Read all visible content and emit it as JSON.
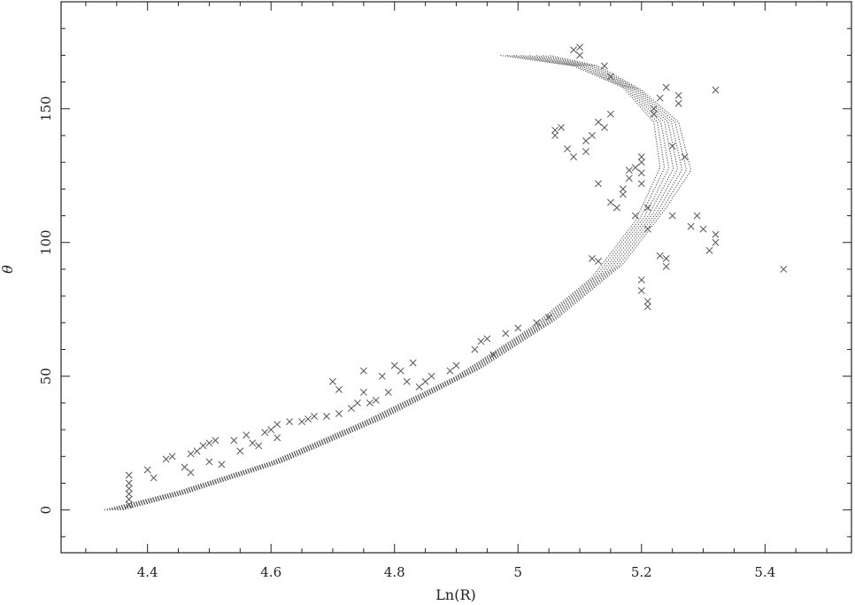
{
  "chart_data": {
    "type": "scatter",
    "title": "",
    "xlabel": "Ln(R)",
    "ylabel": "θ",
    "xlim": [
      4.26,
      5.54
    ],
    "ylim": [
      -16,
      190
    ],
    "xticks": [
      4.4,
      4.6,
      4.8,
      5,
      5.2,
      5.4
    ],
    "xtick_labels": [
      "4.4",
      "4.6",
      "4.8",
      "5",
      "5.2",
      "5.4"
    ],
    "yticks": [
      0,
      50,
      100,
      150
    ],
    "ytick_labels": [
      "0",
      "50",
      "100",
      "150"
    ],
    "grid": false,
    "legend": false,
    "colors": {
      "markers": "#555555",
      "frame": "#222222",
      "background": "#ffffff"
    },
    "series": [
      {
        "marker": "x",
        "points": [
          [
            4.37,
            13
          ],
          [
            4.37,
            10
          ],
          [
            4.37,
            8
          ],
          [
            4.37,
            6
          ],
          [
            4.37,
            4
          ],
          [
            4.37,
            2
          ],
          [
            4.4,
            15
          ],
          [
            4.41,
            12
          ],
          [
            4.43,
            19
          ],
          [
            4.44,
            20
          ],
          [
            4.46,
            16
          ],
          [
            4.47,
            21
          ],
          [
            4.47,
            14
          ],
          [
            4.48,
            22
          ],
          [
            4.49,
            24
          ],
          [
            4.5,
            25
          ],
          [
            4.5,
            18
          ],
          [
            4.51,
            26
          ],
          [
            4.52,
            17
          ],
          [
            4.54,
            26
          ],
          [
            4.55,
            22
          ],
          [
            4.56,
            28
          ],
          [
            4.57,
            25
          ],
          [
            4.58,
            24
          ],
          [
            4.59,
            29
          ],
          [
            4.6,
            30
          ],
          [
            4.61,
            32
          ],
          [
            4.61,
            27
          ],
          [
            4.63,
            33
          ],
          [
            4.65,
            33
          ],
          [
            4.66,
            34
          ],
          [
            4.67,
            35
          ],
          [
            4.69,
            35
          ],
          [
            4.7,
            48
          ],
          [
            4.71,
            45
          ],
          [
            4.71,
            36
          ],
          [
            4.73,
            38
          ],
          [
            4.74,
            40
          ],
          [
            4.75,
            52
          ],
          [
            4.75,
            44
          ],
          [
            4.76,
            40
          ],
          [
            4.77,
            41
          ],
          [
            4.78,
            50
          ],
          [
            4.79,
            44
          ],
          [
            4.8,
            54
          ],
          [
            4.81,
            52
          ],
          [
            4.82,
            48
          ],
          [
            4.83,
            55
          ],
          [
            4.84,
            46
          ],
          [
            4.85,
            48
          ],
          [
            4.86,
            50
          ],
          [
            4.89,
            52
          ],
          [
            4.9,
            54
          ],
          [
            4.93,
            60
          ],
          [
            4.94,
            63
          ],
          [
            4.95,
            64
          ],
          [
            4.96,
            58
          ],
          [
            4.98,
            66
          ],
          [
            5.0,
            68
          ],
          [
            5.03,
            70
          ],
          [
            5.05,
            72
          ],
          [
            5.06,
            142
          ],
          [
            5.06,
            140
          ],
          [
            5.07,
            143
          ],
          [
            5.08,
            135
          ],
          [
            5.09,
            132
          ],
          [
            5.09,
            172
          ],
          [
            5.1,
            173
          ],
          [
            5.1,
            170
          ],
          [
            5.11,
            138
          ],
          [
            5.11,
            134
          ],
          [
            5.12,
            140
          ],
          [
            5.12,
            94
          ],
          [
            5.13,
            122
          ],
          [
            5.13,
            93
          ],
          [
            5.13,
            145
          ],
          [
            5.14,
            143
          ],
          [
            5.14,
            166
          ],
          [
            5.15,
            148
          ],
          [
            5.15,
            162
          ],
          [
            5.15,
            115
          ],
          [
            5.16,
            113
          ],
          [
            5.17,
            118
          ],
          [
            5.17,
            120
          ],
          [
            5.18,
            124
          ],
          [
            5.18,
            127
          ],
          [
            5.19,
            128
          ],
          [
            5.19,
            110
          ],
          [
            5.2,
            132
          ],
          [
            5.2,
            126
          ],
          [
            5.2,
            130
          ],
          [
            5.2,
            122
          ],
          [
            5.2,
            86
          ],
          [
            5.2,
            82
          ],
          [
            5.21,
            113
          ],
          [
            5.21,
            105
          ],
          [
            5.21,
            78
          ],
          [
            5.21,
            76
          ],
          [
            5.22,
            150
          ],
          [
            5.22,
            148
          ],
          [
            5.23,
            154
          ],
          [
            5.23,
            95
          ],
          [
            5.24,
            91
          ],
          [
            5.24,
            94
          ],
          [
            5.24,
            158
          ],
          [
            5.25,
            110
          ],
          [
            5.25,
            136
          ],
          [
            5.26,
            152
          ],
          [
            5.26,
            155
          ],
          [
            5.27,
            132
          ],
          [
            5.28,
            106
          ],
          [
            5.29,
            110
          ],
          [
            5.3,
            105
          ],
          [
            5.31,
            97
          ],
          [
            5.32,
            103
          ],
          [
            5.32,
            100
          ],
          [
            5.32,
            157
          ],
          [
            5.43,
            90
          ]
        ]
      },
      {
        "marker": "dot",
        "band_edges": [
          [
            [
              4.33,
              0
            ],
            [
              4.45,
              7
            ],
            [
              4.6,
              18
            ],
            [
              4.75,
              33
            ],
            [
              4.9,
              50
            ],
            [
              5.02,
              68
            ],
            [
              5.12,
              87
            ],
            [
              5.19,
              108
            ],
            [
              5.23,
              128
            ],
            [
              5.22,
              145
            ],
            [
              5.17,
              158
            ],
            [
              5.09,
              166
            ],
            [
              4.97,
              170
            ]
          ],
          [
            [
              4.36,
              0
            ],
            [
              4.46,
              6
            ],
            [
              4.62,
              18
            ],
            [
              4.78,
              34
            ],
            [
              4.94,
              53
            ],
            [
              5.06,
              71
            ],
            [
              5.17,
              92
            ],
            [
              5.24,
              113
            ],
            [
              5.28,
              127
            ],
            [
              5.26,
              145
            ],
            [
              5.2,
              157
            ],
            [
              5.13,
              166
            ],
            [
              5.05,
              170
            ]
          ]
        ],
        "strand_count": 8
      }
    ]
  }
}
